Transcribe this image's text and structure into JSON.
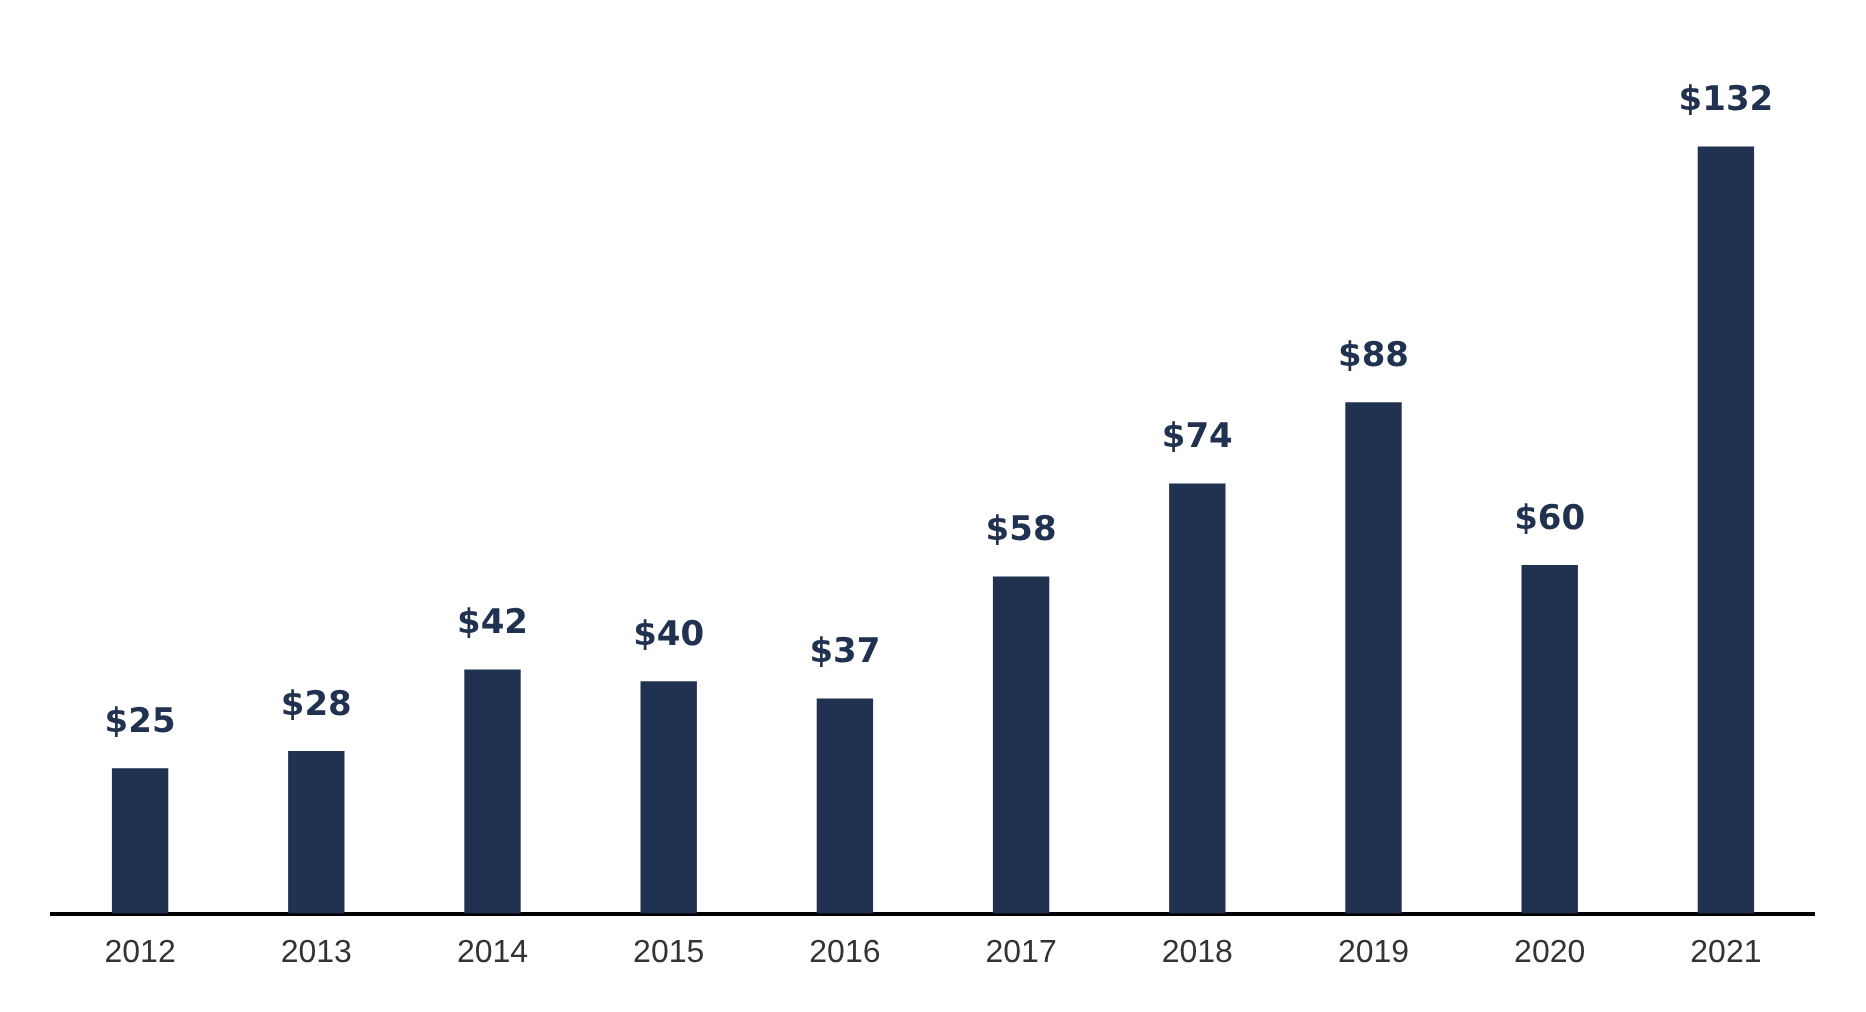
{
  "chart_data": {
    "type": "bar",
    "categories": [
      "2012",
      "2013",
      "2014",
      "2015",
      "2016",
      "2017",
      "2018",
      "2019",
      "2020",
      "2021"
    ],
    "values": [
      25,
      28,
      42,
      40,
      37,
      58,
      74,
      88,
      60,
      132
    ],
    "value_labels": [
      "$25",
      "$28",
      "$42",
      "$40",
      "$37",
      "$58",
      "$74",
      "$88",
      "$60",
      "$132"
    ],
    "color": "#213250",
    "grid": false,
    "legend": false
  }
}
